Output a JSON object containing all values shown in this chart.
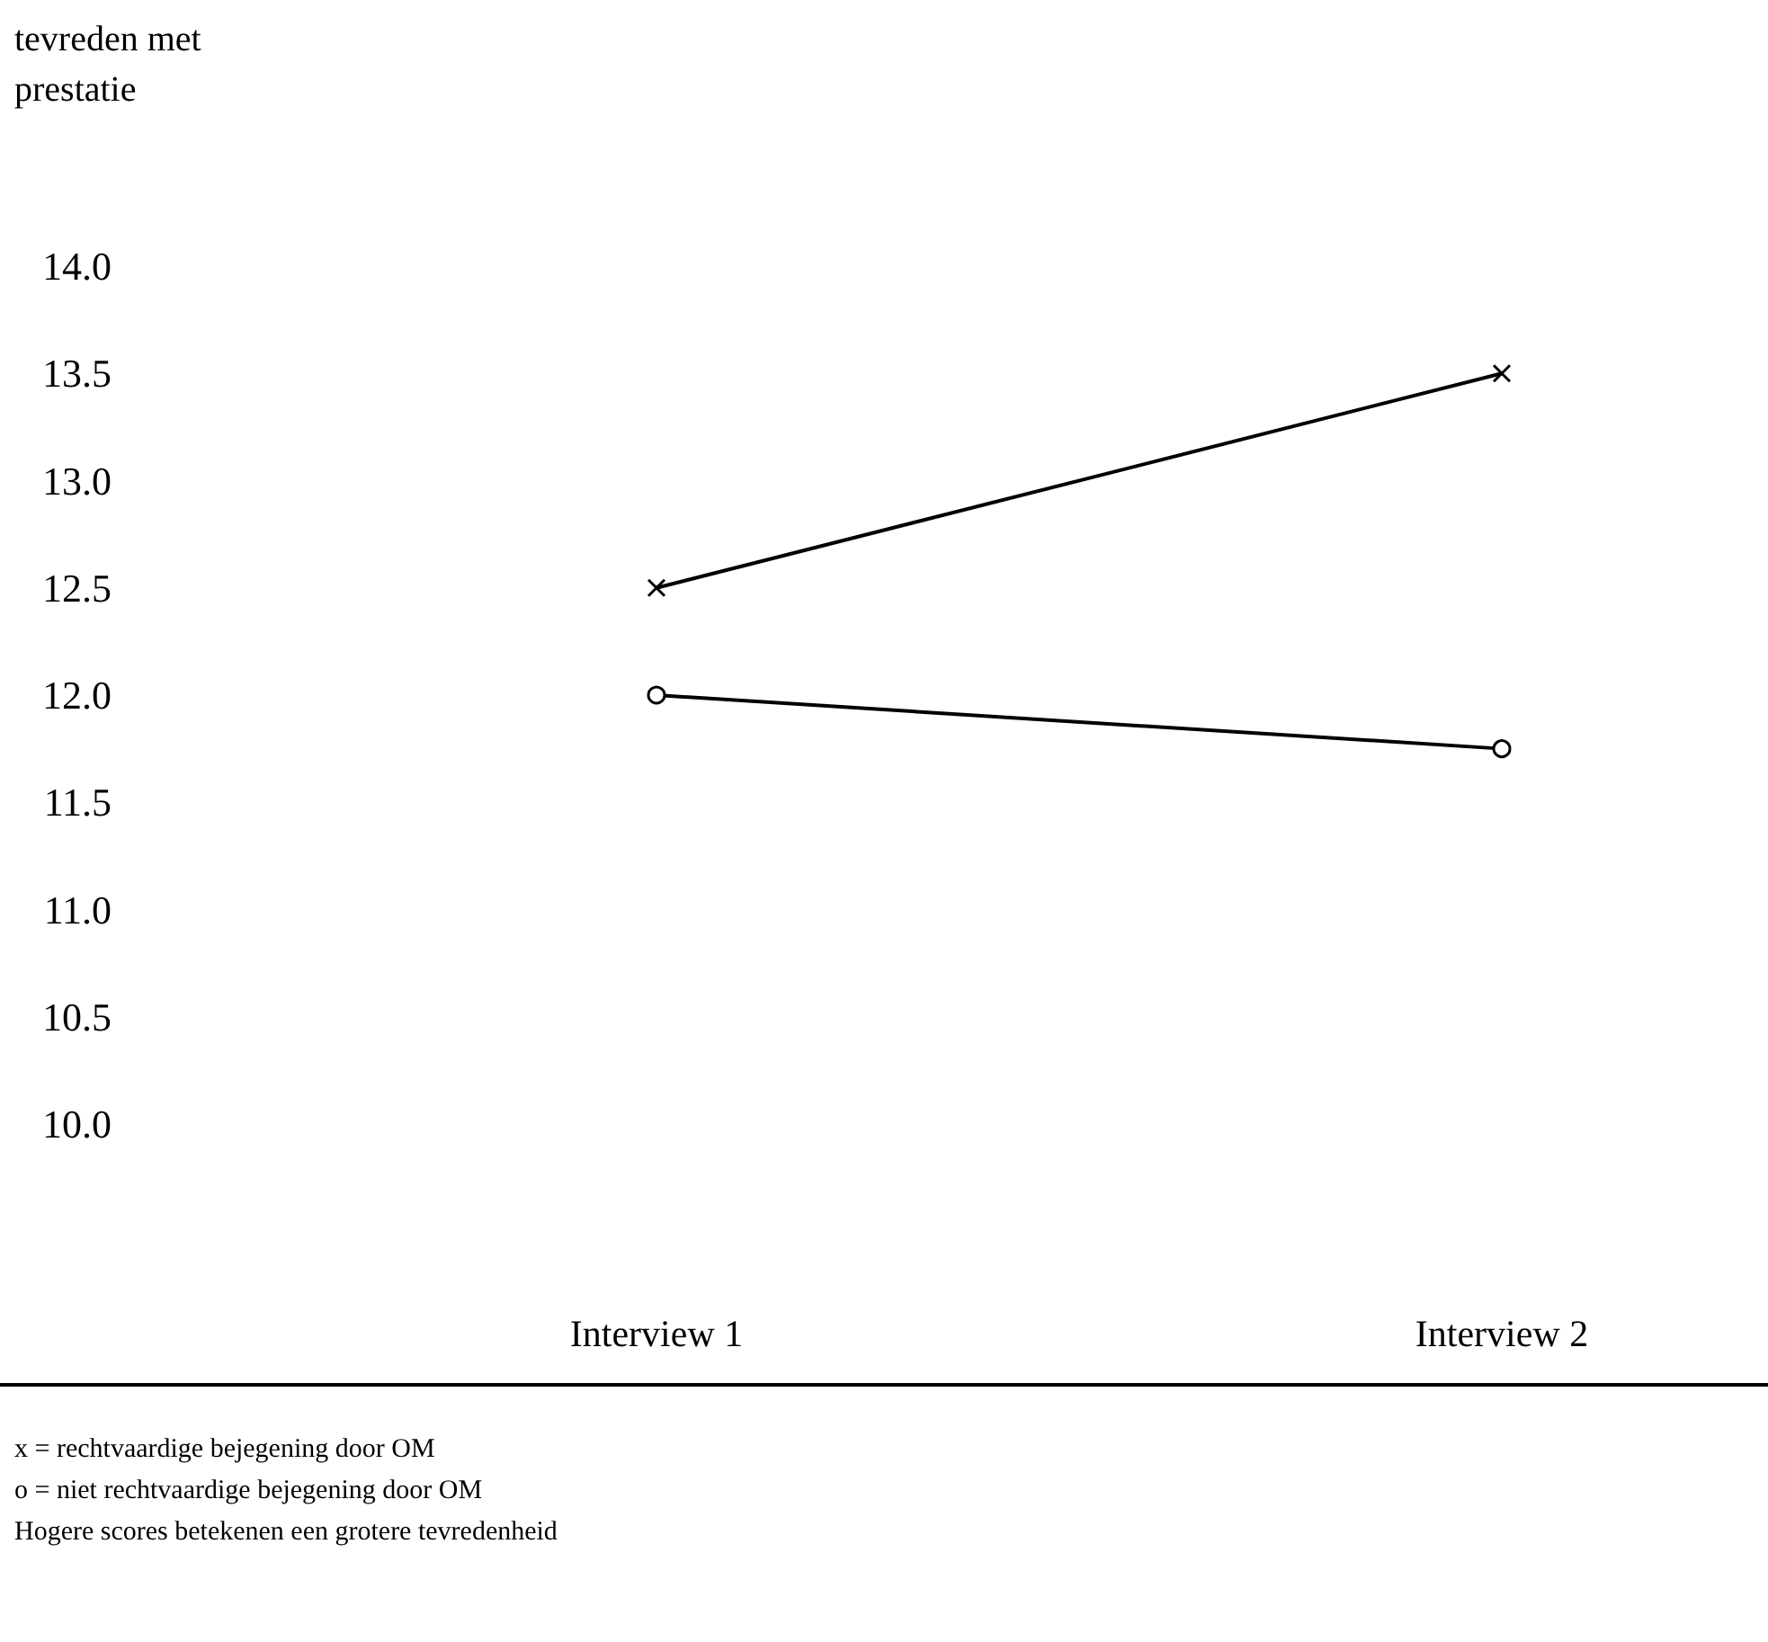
{
  "chart_data": {
    "type": "line",
    "ylabel": "tevreden met prestatie",
    "categories": [
      "Interview 1",
      "Interview 2"
    ],
    "series": [
      {
        "color": "#000000",
        "marker": "cross",
        "values": [
          12.5,
          13.5
        ]
      },
      {
        "color": "#000000",
        "marker": "circle",
        "values": [
          12.0,
          11.75
        ]
      }
    ],
    "ylim": [
      10,
      14
    ],
    "yticks": [
      {
        "value": 10,
        "label": "10.0"
      },
      {
        "value": 10.5,
        "label": "10.5"
      },
      {
        "value": 11,
        "label": "11.0"
      },
      {
        "value": 11.5,
        "label": "11.5"
      },
      {
        "value": 12,
        "label": "12.0"
      },
      {
        "value": 12.5,
        "label": "12.5"
      },
      {
        "value": 13,
        "label": "13.0"
      },
      {
        "value": 13.5,
        "label": "13.5"
      },
      {
        "value": 14,
        "label": "14.0"
      }
    ],
    "grid": false,
    "line_style": "solid",
    "annotations": [
      "x = rechtvaardige bejegening door OM",
      "o = niet rechtvaardige bejegening door OM",
      "Hogere scores betekenen een grotere tevredenheid"
    ]
  }
}
